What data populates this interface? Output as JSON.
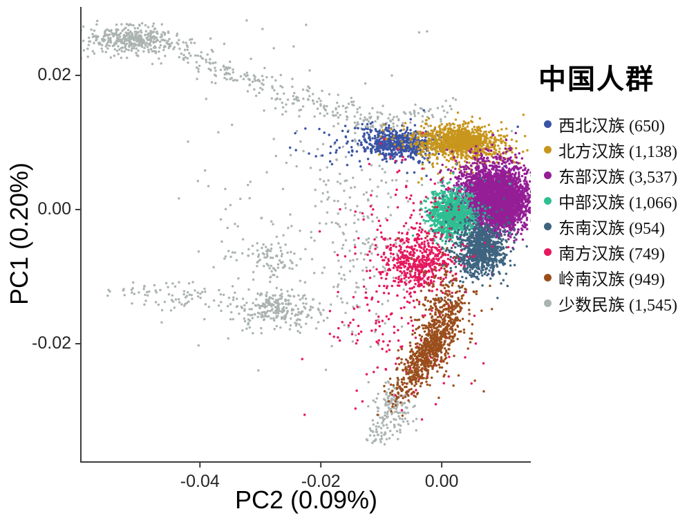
{
  "chart_data": {
    "type": "scatter",
    "legend_title": "中国人群",
    "xlabel": "PC2 (0.09%)",
    "ylabel": "PC1 (0.20%)",
    "xlim": [
      -0.0597,
      0.01474
    ],
    "ylim": [
      -0.03763,
      0.03021
    ],
    "grid": false,
    "legend_position": "right",
    "xticks": [
      {
        "v": -0.04,
        "label": "-0.04"
      },
      {
        "v": -0.02,
        "label": "-0.02"
      },
      {
        "v": 0.0,
        "label": "0.00"
      }
    ],
    "yticks": [
      {
        "v": 0.02,
        "label": "0.02"
      },
      {
        "v": 0.0,
        "label": "0.00"
      },
      {
        "v": -0.02,
        "label": "-0.02"
      }
    ],
    "draw_order": [
      7,
      0,
      1,
      2,
      3,
      4,
      5,
      6
    ],
    "series": [
      {
        "name": "西北汉族",
        "count": 650,
        "label": "西北汉族 (650)",
        "color": "#3A53A4",
        "clusters": [
          {
            "t": "g",
            "c": [
              -0.00754,
              0.00979
            ],
            "s": [
              0.00297,
              0.00103
            ],
            "rot": -4,
            "f": 0.8
          },
          {
            "t": "g",
            "c": [
              -0.00846,
              0.00938
            ],
            "s": [
              0.00686,
              0.00186
            ],
            "rot": -4,
            "f": 0.2
          }
        ]
      },
      {
        "name": "北方汉族",
        "count": 1138,
        "label": "北方汉族 (1,138)",
        "color": "#C8961D",
        "clusters": [
          {
            "t": "g",
            "c": [
              0.00297,
              0.01
            ],
            "s": [
              0.00343,
              0.00124
            ],
            "rot": -3,
            "f": 0.85
          },
          {
            "t": "g",
            "c": [
              0.0024,
              0.00907
            ],
            "s": [
              0.00514,
              0.00206
            ],
            "rot": 0,
            "f": 0.15
          }
        ]
      },
      {
        "name": "东部汉族",
        "count": 3537,
        "label": "东部汉族 (3,537)",
        "color": "#951E96",
        "clusters": [
          {
            "t": "g",
            "c": [
              0.00857,
              0.00206
            ],
            "s": [
              0.00274,
              0.00227
            ],
            "rot": 0,
            "f": 0.6
          },
          {
            "t": "g",
            "c": [
              0.00983,
              0.00031
            ],
            "s": [
              0.00229,
              0.00165
            ],
            "rot": 0,
            "f": 0.28
          },
          {
            "t": "g",
            "c": [
              0.00754,
              0.00237
            ],
            "s": [
              0.004,
              0.0033
            ],
            "rot": 0,
            "f": 0.12
          }
        ]
      },
      {
        "name": "中部汉族",
        "count": 1066,
        "label": "中部汉族 (1,066)",
        "color": "#2FBE92",
        "clusters": [
          {
            "t": "g",
            "c": [
              0.00183,
              -0.00062
            ],
            "s": [
              0.00183,
              0.00155
            ],
            "rot": 0,
            "f": 0.9
          },
          {
            "t": "g",
            "c": [
              0.00183,
              -0.00062
            ],
            "s": [
              0.00297,
              0.00247
            ],
            "rot": 0,
            "f": 0.1
          }
        ]
      },
      {
        "name": "东南汉族",
        "count": 954,
        "label": "东南汉族 (954)",
        "color": "#3E6480",
        "clusters": [
          {
            "t": "g",
            "c": [
              0.00651,
              -0.00598
            ],
            "s": [
              0.00194,
              0.00196
            ],
            "rot": 0,
            "f": 0.85
          },
          {
            "t": "g",
            "c": [
              0.00583,
              -0.00485
            ],
            "s": [
              0.00343,
              0.00361
            ],
            "rot": 0,
            "f": 0.15
          }
        ]
      },
      {
        "name": "南方汉族",
        "count": 749,
        "label": "南方汉族 (749)",
        "color": "#E6185E",
        "clusters": [
          {
            "t": "g",
            "c": [
              -0.00377,
              -0.00763
            ],
            "s": [
              0.00286,
              0.00216
            ],
            "rot": 0,
            "f": 0.62
          },
          {
            "t": "g",
            "c": [
              -0.00731,
              -0.01309
            ],
            "s": [
              0.00571,
              0.00773
            ],
            "rot": 0,
            "f": 0.3
          },
          {
            "t": "g",
            "c": [
              -0.00217,
              0.00031
            ],
            "s": [
              0.00457,
              0.00515
            ],
            "rot": 0,
            "f": 0.08
          }
        ]
      },
      {
        "name": "岭南汉族",
        "count": 949,
        "label": "岭南汉族 (949)",
        "color": "#9A4E1C",
        "clusters": [
          {
            "t": "g",
            "c": [
              -0.00217,
              -0.02103
            ],
            "s": [
              0.0043,
              0.0013
            ],
            "rot": 53,
            "f": 0.75
          },
          {
            "t": "g",
            "c": [
              0.00011,
              -0.01567
            ],
            "s": [
              0.00229,
              0.00412
            ],
            "rot": 0,
            "f": 0.25
          }
        ]
      },
      {
        "name": "少数民族",
        "count": 1545,
        "label": "少数民族 (1,545)",
        "color": "#ACB4B2",
        "clusters": [
          {
            "t": "g",
            "c": [
              -0.05177,
              0.02536
            ],
            "s": [
              0.0032,
              0.00093
            ],
            "rot": 0,
            "f": 0.2
          },
          {
            "t": "g",
            "c": [
              -0.05017,
              0.02484
            ],
            "s": [
              0.00629,
              0.00165
            ],
            "rot": 0,
            "f": 0.06
          },
          {
            "t": "s",
            "a": [
              -0.04503,
              0.02381
            ],
            "b": [
              -0.01074,
              0.01247
            ],
            "j": [
              0.0008,
              0.00093
            ],
            "f": 0.13
          },
          {
            "t": "s",
            "a": [
              -0.01074,
              0.0132
            ],
            "b": [
              0.00126,
              0.01474
            ],
            "j": [
              0.0009,
              0.00103
            ],
            "f": 0.04
          },
          {
            "t": "s",
            "a": [
              -0.0544,
              -0.01237
            ],
            "b": [
              -0.03474,
              -0.0133
            ],
            "j": [
              0.0008,
              0.00113
            ],
            "f": 0.05
          },
          {
            "t": "g",
            "c": [
              -0.028,
              -0.00732
            ],
            "s": [
              0.00309,
              0.00175
            ],
            "rot": 0,
            "f": 0.06
          },
          {
            "t": "g",
            "c": [
              -0.0272,
              -0.01485
            ],
            "s": [
              0.0032,
              0.00124
            ],
            "rot": 0,
            "f": 0.12
          },
          {
            "t": "g",
            "c": [
              -0.0272,
              -0.01485
            ],
            "s": [
              0.00514,
              0.00206
            ],
            "rot": 0,
            "f": 0.04
          },
          {
            "t": "g",
            "c": [
              -0.01406,
              -0.00278
            ],
            "s": [
              0.00377,
              0.00928
            ],
            "rot": 0,
            "f": 0.1
          },
          {
            "t": "s",
            "a": [
              -0.00811,
              -0.0267
            ],
            "b": [
              -0.01063,
              -0.03495
            ],
            "j": [
              0.00091,
              0.00093
            ],
            "f": 0.07
          },
          {
            "t": "g",
            "c": [
              -0.00731,
              -0.0301
            ],
            "s": [
              0.00137,
              0.00186
            ],
            "rot": 0,
            "f": 0.04
          },
          {
            "t": "g",
            "c": [
              -0.0216,
              0.00237
            ],
            "s": [
              0.01257,
              0.01134
            ],
            "rot": 0,
            "f": 0.09
          }
        ]
      }
    ]
  }
}
